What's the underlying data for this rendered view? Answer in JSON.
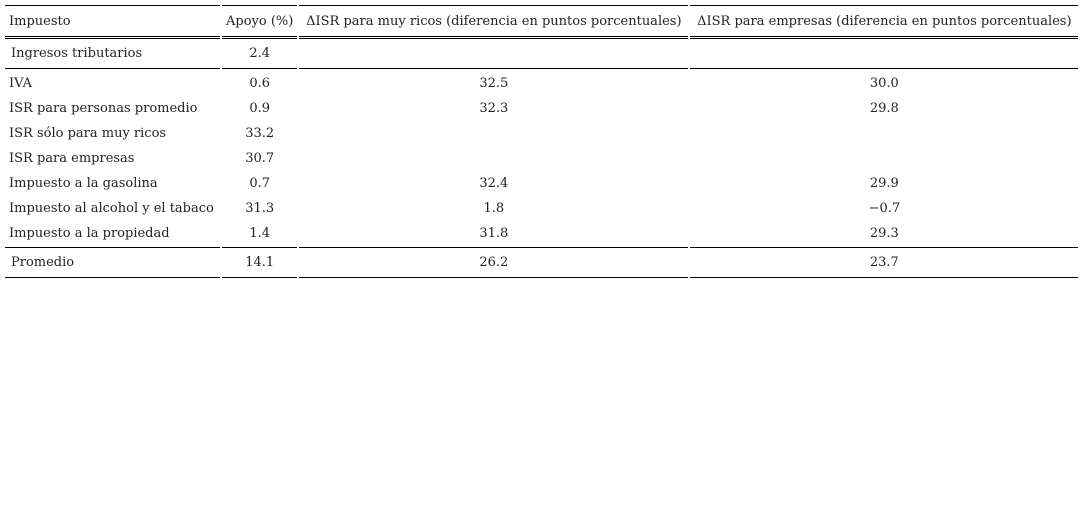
{
  "table": {
    "headers": [
      "Impuesto",
      "Apoyo (%)",
      "ΔISR para muy ricos (diferencia en puntos porcentuales)",
      "ΔISR para empresas (diferencia en puntos porcentuales)"
    ],
    "first_row": [
      "Ingresos tributarios",
      "2.4",
      "",
      ""
    ],
    "rows": [
      [
        "IVA",
        "0.6",
        "32.5",
        "30.0"
      ],
      [
        "ISR para personas promedio",
        "0.9",
        "32.3",
        "29.8"
      ],
      [
        "ISR sólo para muy ricos",
        "33.2",
        "",
        ""
      ],
      [
        "ISR para empresas",
        "30.7",
        "",
        ""
      ],
      [
        "Impuesto a la gasolina",
        "0.7",
        "32.4",
        "29.9"
      ],
      [
        "Impuesto al alcohol y el tabaco",
        "31.3",
        "1.8",
        "−0.7"
      ],
      [
        "Impuesto a la propiedad",
        "1.4",
        "31.8",
        "29.3"
      ]
    ],
    "average_row": [
      "Promedio",
      "14.1",
      "26.2",
      "23.7"
    ]
  }
}
